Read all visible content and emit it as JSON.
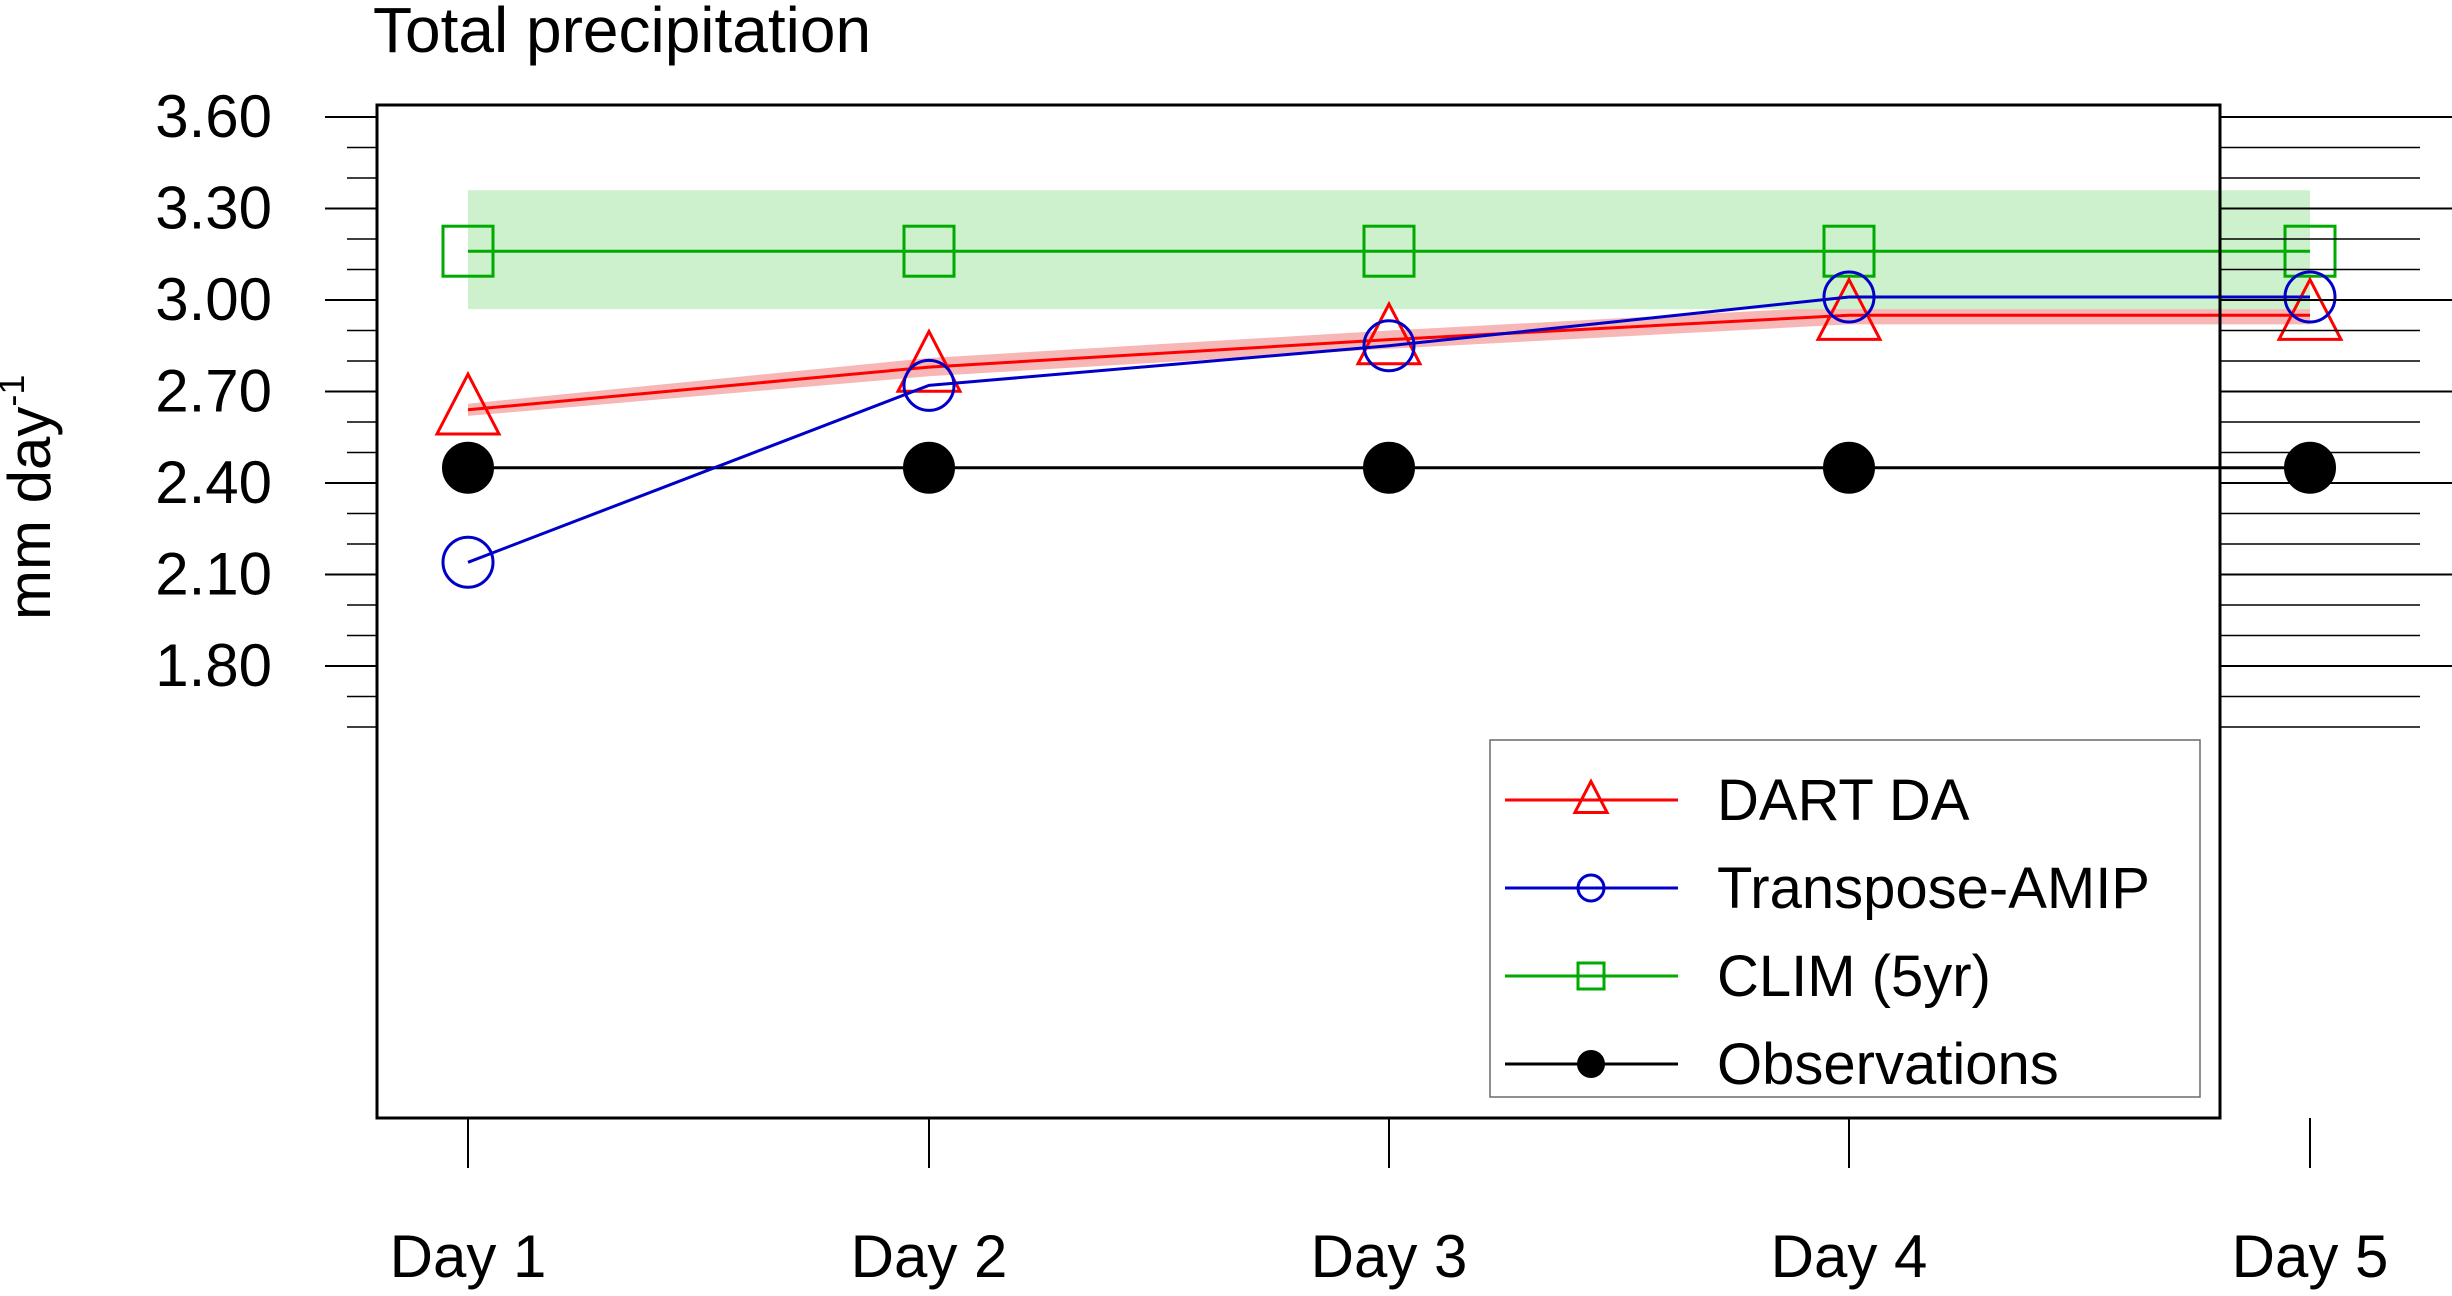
{
  "chart_data": {
    "type": "line",
    "title": "Total precipitation",
    "ylabel": {
      "base": "mm day",
      "superscript": "-1"
    },
    "xlabel": "",
    "categories": [
      "Day 1",
      "Day 2",
      "Day 3",
      "Day 4",
      "Day 5"
    ],
    "ylim": [
      1.6,
      3.6
    ],
    "yticks": [
      1.8,
      2.1,
      2.4,
      2.7,
      3.0,
      3.3,
      3.6
    ],
    "ytick_labels": [
      "1.80",
      "2.10",
      "2.40",
      "2.70",
      "3.00",
      "3.30",
      "3.60"
    ],
    "y_minor_step": 0.1,
    "grid": false,
    "legend_position": "bottom-right",
    "series": [
      {
        "name": "DART DA",
        "values": [
          2.64,
          2.78,
          2.87,
          2.95,
          2.95
        ],
        "color": "#ff0000",
        "marker": "triangle",
        "band": {
          "lower": [
            2.62,
            2.75,
            2.84,
            2.92,
            2.92
          ],
          "upper": [
            2.66,
            2.81,
            2.9,
            2.98,
            2.98
          ],
          "color": "#f7b7b7"
        }
      },
      {
        "name": "Transpose-AMIP",
        "values": [
          2.14,
          2.72,
          2.85,
          3.01,
          3.01
        ],
        "color": "#0000c8",
        "marker": "circle"
      },
      {
        "name": "CLIM (5yr)",
        "values": [
          3.16,
          3.16,
          3.16,
          3.16,
          3.16
        ],
        "color": "#00aa00",
        "marker": "square",
        "band": {
          "lower": [
            2.97,
            2.97,
            2.97,
            2.97,
            2.97
          ],
          "upper": [
            3.36,
            3.36,
            3.36,
            3.36,
            3.36
          ],
          "color": "#cdf1cd"
        }
      },
      {
        "name": "Observations",
        "values": [
          2.45,
          2.45,
          2.45,
          2.45,
          2.45
        ],
        "color": "#000000",
        "marker": "filled-circle"
      }
    ]
  }
}
